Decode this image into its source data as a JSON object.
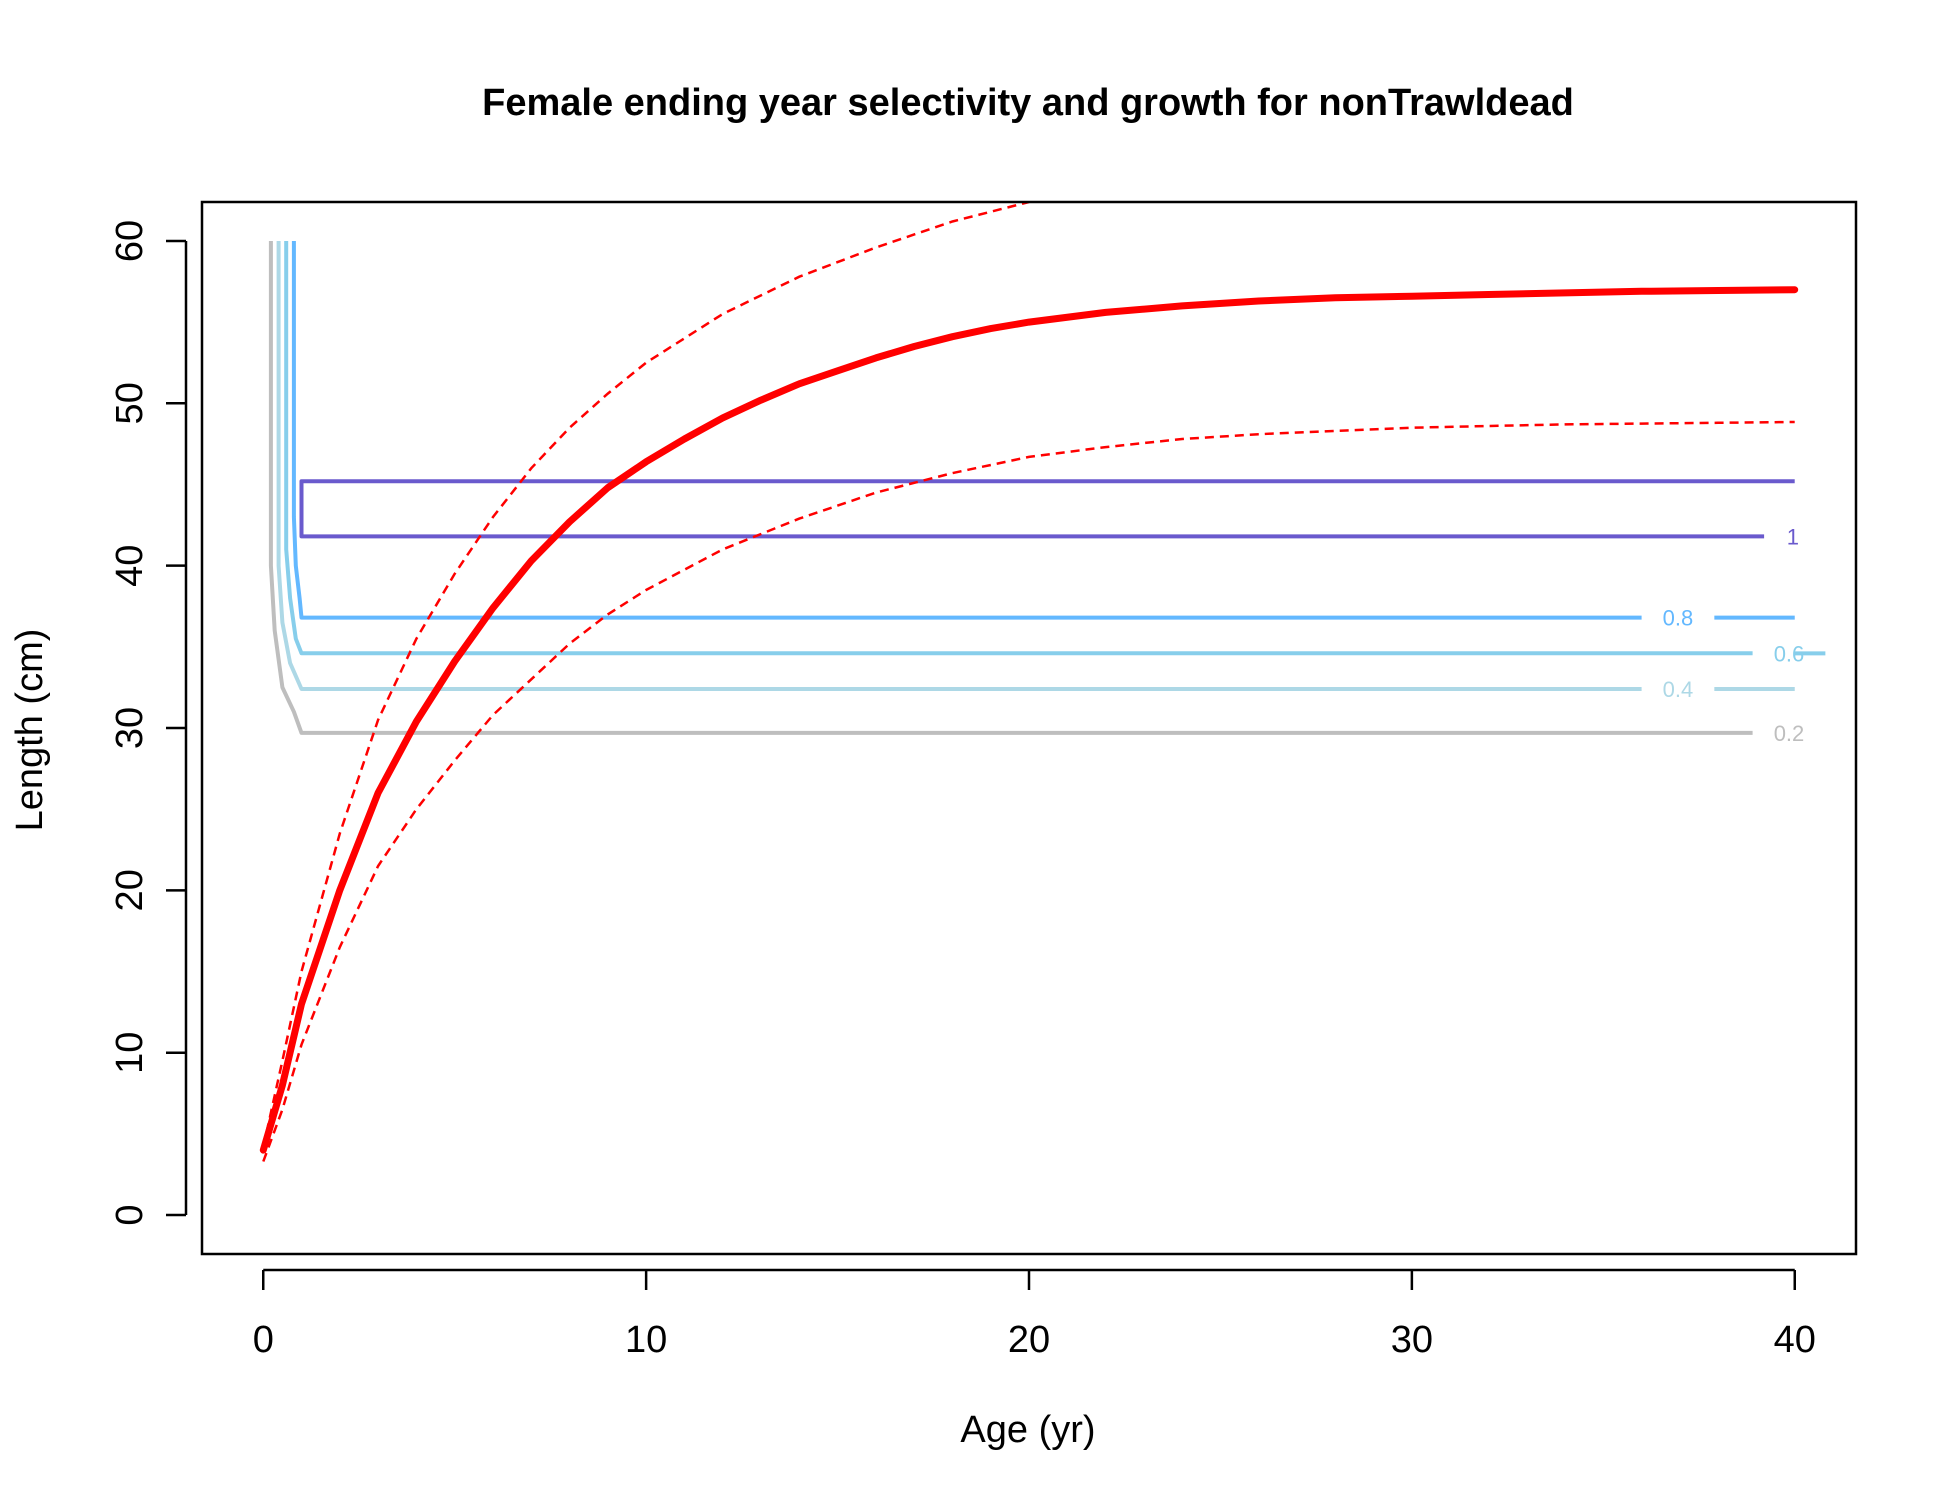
{
  "chart_data": {
    "type": "line",
    "title": "Female ending year selectivity and growth for nonTrawldead",
    "xlabel": "Age (yr)",
    "ylabel": "Length (cm)",
    "xlim": [
      -1.6,
      41.6
    ],
    "ylim": [
      -2.4,
      62.4
    ],
    "x_ticks": [
      0,
      10,
      20,
      30,
      40
    ],
    "y_ticks": [
      0,
      10,
      20,
      30,
      40,
      50,
      60
    ],
    "grid": false,
    "growth": {
      "mean": {
        "color": "#ff0000",
        "x": [
          0,
          0.5,
          1,
          2,
          3,
          4,
          5,
          6,
          7,
          8,
          9,
          10,
          11,
          12,
          13,
          14,
          15,
          16,
          17,
          18,
          19,
          20,
          22,
          24,
          26,
          28,
          30,
          32,
          34,
          36,
          38,
          40
        ],
        "y": [
          4.0,
          8.0,
          13.0,
          20.0,
          26.0,
          30.4,
          34.1,
          37.4,
          40.3,
          42.7,
          44.8,
          46.4,
          47.8,
          49.1,
          50.2,
          51.2,
          52.0,
          52.8,
          53.5,
          54.1,
          54.6,
          55.0,
          55.6,
          56.0,
          56.3,
          56.5,
          56.6,
          56.7,
          56.8,
          56.9,
          56.95,
          57.0
        ]
      },
      "upper": {
        "color": "#ff0000",
        "x": [
          0,
          0.5,
          1,
          2,
          3,
          4,
          5,
          6,
          7,
          8,
          9,
          10,
          12,
          14,
          16,
          18,
          20
        ],
        "y": [
          4.2,
          9.5,
          15.0,
          23.5,
          30.5,
          35.5,
          39.5,
          43.0,
          46.0,
          48.5,
          50.6,
          52.5,
          55.5,
          57.8,
          59.6,
          61.2,
          62.4
        ]
      },
      "lower": {
        "color": "#ff0000",
        "x": [
          0,
          0.5,
          1,
          2,
          3,
          4,
          5,
          6,
          7,
          8,
          9,
          10,
          12,
          14,
          16,
          18,
          20,
          22,
          24,
          26,
          28,
          30,
          32,
          34,
          36,
          38,
          40
        ],
        "y": [
          3.3,
          6.5,
          10.5,
          16.5,
          21.5,
          25.0,
          28.0,
          30.8,
          33.0,
          35.2,
          37.0,
          38.5,
          41.0,
          42.9,
          44.5,
          45.7,
          46.7,
          47.3,
          47.8,
          48.1,
          48.3,
          48.5,
          48.6,
          48.7,
          48.75,
          48.8,
          48.85
        ]
      }
    },
    "selectivity_contours": [
      {
        "level": "0.2",
        "color": "#bebebe",
        "x": [
          0.2,
          0.2,
          0.3,
          0.5,
          0.8,
          1.0,
          38.9
        ],
        "y": [
          60,
          40,
          36,
          32.5,
          31,
          29.7,
          29.7
        ],
        "label_x": 39.1,
        "label_y": 29.7
      },
      {
        "level": "0.4",
        "color": "#add8e6",
        "x": [
          0.4,
          0.4,
          0.5,
          0.7,
          1.0,
          36.0
        ],
        "y": [
          60,
          40,
          36.5,
          34,
          32.4,
          32.4
        ],
        "label_x": 36.0,
        "label_y": 32.4,
        "continue_x": 40
      },
      {
        "level": "0.6",
        "color": "#87ceeb",
        "x": [
          0.6,
          0.6,
          0.7,
          0.85,
          1.0,
          38.9
        ],
        "y": [
          60,
          41,
          38,
          35.5,
          34.6,
          34.6
        ],
        "label_x": 38.9,
        "label_y": 34.6,
        "continue_x": 40
      },
      {
        "level": "0.8",
        "color": "#63b8ff",
        "x": [
          0.8,
          0.8,
          0.85,
          0.95,
          1.0,
          36.0
        ],
        "y": [
          60,
          43,
          40,
          38,
          36.8,
          36.8
        ],
        "label_x": 36.0,
        "label_y": 36.8,
        "continue_x": 40
      },
      {
        "level": "1",
        "color": "#6a5acd",
        "x": [
          40,
          1.0,
          1.0,
          39.2
        ],
        "y": [
          45.2,
          45.2,
          41.8,
          41.8
        ],
        "label_x": 39.2,
        "label_y": 41.8
      }
    ]
  }
}
